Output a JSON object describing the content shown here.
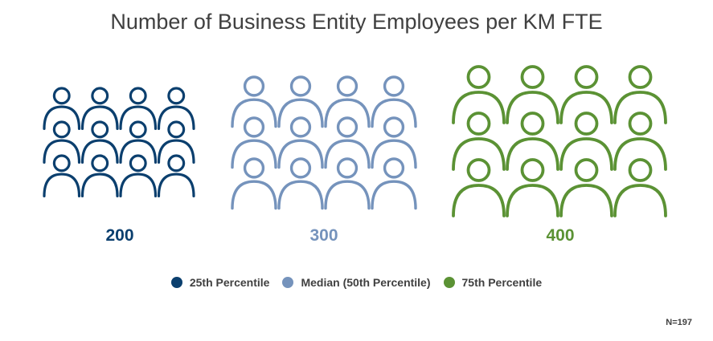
{
  "title": "Number of Business Entity Employees per KM FTE",
  "note": "N=197",
  "chart_data": {
    "type": "pictograph",
    "title": "Number of Business Entity Employees per KM FTE",
    "categories": [
      "25th Percentile",
      "Median (50th Percentile)",
      "75th Percentile"
    ],
    "values": [
      200,
      300,
      400
    ],
    "value_labels": [
      "200",
      "300",
      "400"
    ],
    "colors": [
      "#0b3f6e",
      "#7593bc",
      "#5b9234"
    ],
    "icon": "person-icon",
    "icon_grid": "3 rows x 4 columns per group",
    "legend_position": "bottom-center"
  }
}
